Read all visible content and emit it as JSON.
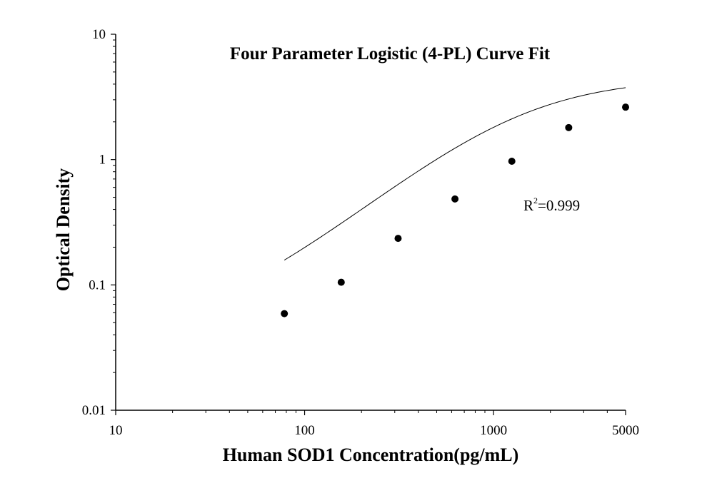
{
  "chart_data": {
    "type": "scatter",
    "title": "Four Parameter Logistic (4-PL) Curve Fit",
    "xlabel": "Human SOD1 Concentration(pg/mL)",
    "ylabel": "Optical Density",
    "x_scale": "log",
    "y_scale": "log",
    "xlim": [
      10,
      5000
    ],
    "ylim": [
      0.01,
      10
    ],
    "x_ticks": [
      10,
      100,
      1000,
      5000
    ],
    "x_tick_labels": [
      "10",
      "100",
      "1000",
      "5000"
    ],
    "y_ticks": [
      0.01,
      0.1,
      1,
      10
    ],
    "y_tick_labels": [
      "0.01",
      "0.1",
      "1",
      "10"
    ],
    "grid": false,
    "series": [
      {
        "x": [
          78.125,
          156.25,
          312.5,
          625,
          1250,
          2500,
          5000
        ],
        "y": [
          0.059,
          0.105,
          0.235,
          0.485,
          0.97,
          1.8,
          2.62
        ]
      }
    ],
    "fit_curve": {
      "model": "4-PL",
      "x_range": [
        78.125,
        5000
      ],
      "params": {
        "A": 0.04,
        "B": 1.25,
        "C": 1400,
        "D": 4.5
      }
    },
    "annotation": {
      "base": "R",
      "superscript": "2",
      "value": "=0.999"
    }
  }
}
